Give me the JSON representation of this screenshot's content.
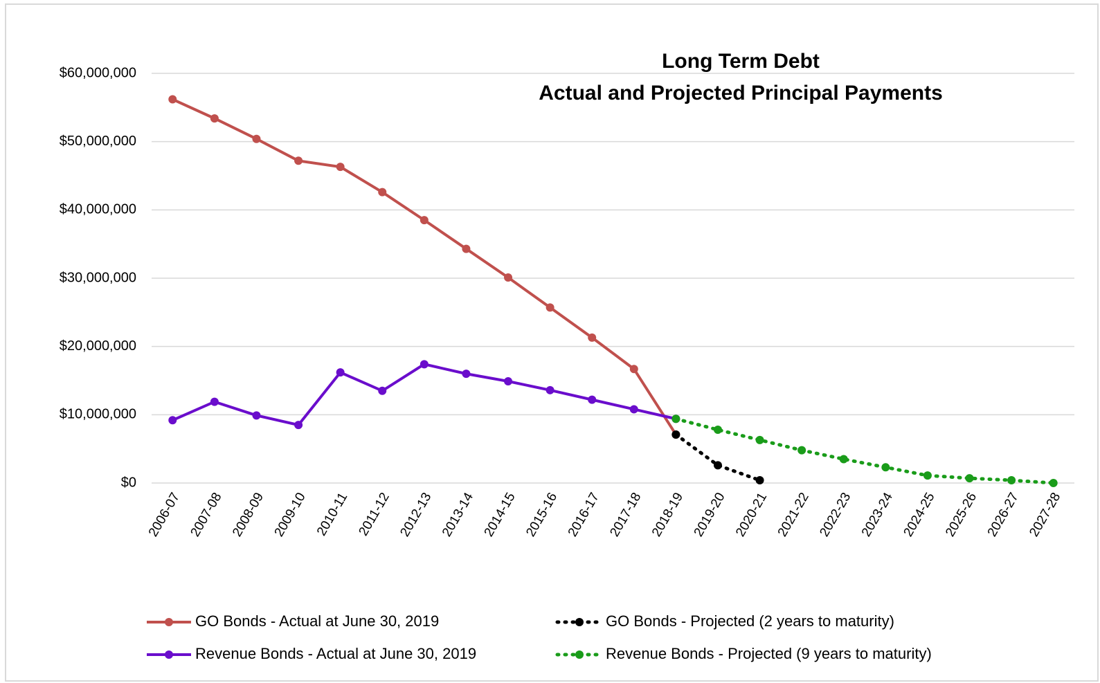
{
  "chart_data": {
    "type": "line",
    "title": "Long Term Debt",
    "subtitle": "Actual and Projected Principal Payments",
    "categories": [
      "2006-07",
      "2007-08",
      "2008-09",
      "2009-10",
      "2010-11",
      "2011-12",
      "2012-13",
      "2013-14",
      "2014-15",
      "2015-16",
      "2016-17",
      "2017-18",
      "2018-19",
      "2019-20",
      "2020-21",
      "2021-22",
      "2022-23",
      "2023-24",
      "2024-25",
      "2025-26",
      "2026-27",
      "2027-28"
    ],
    "series": [
      {
        "name": "GO Bonds - Actual at June 30, 2019",
        "color": "#c0504d",
        "style": "solid",
        "values": [
          56200000,
          53400000,
          50400000,
          47200000,
          46300000,
          42600000,
          38500000,
          34300000,
          30100000,
          25700000,
          21300000,
          16700000,
          7100000,
          null,
          null,
          null,
          null,
          null,
          null,
          null,
          null,
          null
        ]
      },
      {
        "name": "Revenue Bonds - Actual at June 30, 2019",
        "color": "#6a0dcc",
        "style": "solid",
        "values": [
          9200000,
          11900000,
          9900000,
          8500000,
          16200000,
          13500000,
          17400000,
          16000000,
          14900000,
          13600000,
          12200000,
          10800000,
          9400000,
          null,
          null,
          null,
          null,
          null,
          null,
          null,
          null,
          null
        ]
      },
      {
        "name": "GO Bonds - Projected (2 years to maturity)",
        "color": "#000000",
        "style": "dotted",
        "values": [
          null,
          null,
          null,
          null,
          null,
          null,
          null,
          null,
          null,
          null,
          null,
          null,
          7100000,
          2600000,
          400000,
          null,
          null,
          null,
          null,
          null,
          null,
          null
        ]
      },
      {
        "name": "Revenue Bonds - Projected (9 years to maturity)",
        "color": "#1a9c1a",
        "style": "dotted",
        "values": [
          null,
          null,
          null,
          null,
          null,
          null,
          null,
          null,
          null,
          null,
          null,
          null,
          9400000,
          7800000,
          6300000,
          4800000,
          3500000,
          2300000,
          1100000,
          700000,
          400000,
          0
        ]
      }
    ],
    "ylim": [
      0,
      60000000
    ],
    "yticks": [
      {
        "value": 0,
        "label": "$0"
      },
      {
        "value": 10000000,
        "label": "$10,000,000"
      },
      {
        "value": 20000000,
        "label": "$20,000,000"
      },
      {
        "value": 30000000,
        "label": "$30,000,000"
      },
      {
        "value": 40000000,
        "label": "$40,000,000"
      },
      {
        "value": 50000000,
        "label": "$50,000,000"
      },
      {
        "value": 60000000,
        "label": "$60,000,000"
      }
    ],
    "grid": true,
    "legend": "bottom"
  }
}
